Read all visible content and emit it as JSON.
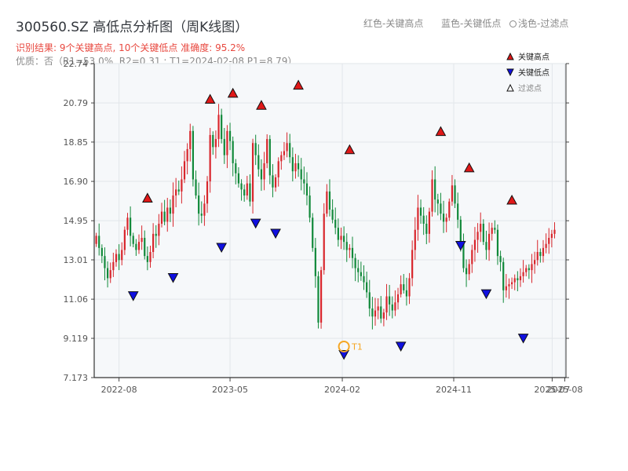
{
  "header": {
    "title": "300560.SZ 高低点分析图（周K线图）",
    "result": "识别结果: 9个关键高点, 10个关键低点   准确度: 95.2%",
    "quality": "优质：否（R1=53.0%, R2=0.31 ; T1=2024-02-08 P1=8.79）"
  },
  "top_legend": {
    "red_label": "红色-关键高点",
    "blue_label": "蓝色-关键低点",
    "light_label": "浅色-过滤点"
  },
  "chart_data": {
    "type": "candlestick",
    "title": "300560.SZ 高低点分析图（周K线图）",
    "y_ticks": [
      "7.173",
      "9.119",
      "11.06",
      "13.01",
      "14.95",
      "16.90",
      "18.85",
      "20.79",
      "22.74"
    ],
    "ylim": [
      7.173,
      22.74
    ],
    "x_ticks": [
      {
        "label": "2022-08",
        "date": "2022-08"
      },
      {
        "label": "2023-05",
        "date": "2023-05"
      },
      {
        "label": "2024-02",
        "date": "2024-02"
      },
      {
        "label": "2024-11",
        "date": "2024-11"
      },
      {
        "label": "2025-07",
        "date": "2025-07"
      },
      {
        "label": "2025-08",
        "date": "2025-08"
      }
    ],
    "xlim": [
      "2022-06",
      "2025-08"
    ],
    "legend": {
      "position": "top-right",
      "items": [
        {
          "label": "关键高点",
          "marker": "up-triangle",
          "color": "#e01818"
        },
        {
          "label": "关键低点",
          "marker": "down-triangle",
          "color": "#1010e0"
        },
        {
          "label": "过滤点",
          "marker": "up-triangle-hollow",
          "color": "#ffffff"
        }
      ]
    },
    "key_highs": [
      {
        "date": "2022-10-10",
        "price": 15.6
      },
      {
        "date": "2023-03-13",
        "price": 20.5
      },
      {
        "date": "2023-05-08",
        "price": 20.8
      },
      {
        "date": "2023-07-17",
        "price": 20.2
      },
      {
        "date": "2023-10-16",
        "price": 21.2
      },
      {
        "date": "2024-02-19",
        "price": 18.0
      },
      {
        "date": "2024-09-30",
        "price": 18.9
      },
      {
        "date": "2024-12-09",
        "price": 17.1
      },
      {
        "date": "2025-03-24",
        "price": 15.5
      }
    ],
    "key_lows": [
      {
        "date": "2022-09-05",
        "price": 11.7
      },
      {
        "date": "2022-12-12",
        "price": 12.6
      },
      {
        "date": "2023-04-10",
        "price": 14.1
      },
      {
        "date": "2023-07-03",
        "price": 15.3
      },
      {
        "date": "2023-08-21",
        "price": 14.8
      },
      {
        "date": "2024-02-05",
        "price": 8.79
      },
      {
        "date": "2024-06-24",
        "price": 9.2
      },
      {
        "date": "2024-11-18",
        "price": 14.2
      },
      {
        "date": "2025-01-20",
        "price": 11.8
      },
      {
        "date": "2025-04-21",
        "price": 9.6
      }
    ],
    "annotation": {
      "label": "T1",
      "date": "2024-02-05",
      "price": 8.79
    },
    "weekly_close": [
      14.2,
      13.6,
      13.2,
      12.6,
      12.1,
      12.5,
      12.9,
      13.3,
      13.0,
      13.5,
      14.5,
      15.1,
      14.2,
      13.8,
      13.5,
      13.9,
      14.1,
      13.2,
      12.9,
      13.4,
      14.3,
      14.2,
      14.8,
      15.4,
      14.9,
      15.6,
      15.3,
      16.2,
      16.5,
      16.4,
      17.0,
      17.9,
      18.5,
      19.4,
      17.0,
      16.2,
      15.3,
      15.2,
      15.8,
      16.9,
      19.2,
      18.6,
      19.0,
      20.2,
      19.0,
      18.2,
      19.4,
      18.9,
      17.8,
      17.3,
      16.8,
      16.5,
      16.2,
      16.8,
      15.9,
      18.8,
      18.2,
      17.5,
      17.0,
      17.8,
      19.0,
      17.2,
      16.6,
      17.1,
      17.9,
      18.2,
      18.4,
      18.8,
      18.1,
      17.4,
      17.8,
      17.5,
      17.0,
      16.8,
      16.2,
      15.1,
      13.6,
      12.2,
      9.9,
      12.5,
      15.3,
      16.4,
      15.5,
      15.0,
      14.6,
      14.0,
      14.2,
      13.9,
      13.5,
      13.6,
      13.1,
      12.6,
      12.4,
      12.2,
      11.9,
      11.4,
      10.6,
      10.2,
      10.5,
      10.7,
      10.1,
      10.4,
      11.2,
      10.8,
      10.5,
      10.9,
      11.3,
      11.8,
      11.5,
      11.2,
      12.1,
      13.5,
      14.5,
      15.6,
      15.2,
      14.8,
      14.3,
      15.4,
      17.0,
      16.0,
      15.8,
      15.3,
      14.9,
      15.1,
      15.9,
      16.7,
      15.8,
      15.0,
      13.8,
      12.6,
      12.3,
      12.8,
      13.5,
      14.0,
      14.4,
      14.8,
      13.9,
      13.5,
      14.3,
      14.6,
      14.5,
      13.2,
      12.9,
      11.5,
      11.7,
      11.8,
      11.9,
      12.1,
      12.0,
      12.2,
      12.4,
      12.6,
      12.5,
      12.8,
      13.0,
      13.4,
      13.2,
      13.6,
      13.8,
      14.1,
      14.3,
      14.5
    ]
  }
}
